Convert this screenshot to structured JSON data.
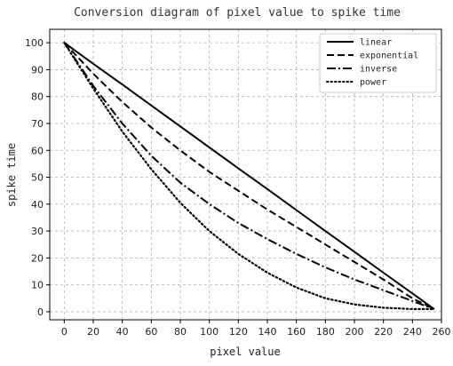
{
  "chart_data": {
    "type": "line",
    "title": "Conversion diagram of pixel value to spike time",
    "xlabel": "pixel value",
    "ylabel": "spike time",
    "xlim": [
      -10,
      260
    ],
    "ylim": [
      -3,
      105
    ],
    "xticks": [
      0,
      20,
      40,
      60,
      80,
      100,
      120,
      140,
      160,
      180,
      200,
      220,
      240,
      260
    ],
    "yticks": [
      0,
      10,
      20,
      30,
      40,
      50,
      60,
      70,
      80,
      90,
      100
    ],
    "grid": true,
    "legend_position": "top-right",
    "series": [
      {
        "name": "linear",
        "style": "solid",
        "x": [
          0,
          20,
          40,
          60,
          80,
          100,
          120,
          140,
          160,
          180,
          200,
          220,
          240,
          255
        ],
        "y": [
          100,
          92.2,
          84.5,
          76.7,
          68.9,
          61.1,
          53.3,
          45.6,
          37.8,
          30.0,
          22.3,
          14.5,
          6.8,
          1
        ]
      },
      {
        "name": "exponential",
        "style": "dashed",
        "x": [
          0,
          20,
          40,
          60,
          80,
          100,
          120,
          140,
          160,
          180,
          200,
          220,
          240,
          255
        ],
        "y": [
          100,
          88.5,
          78,
          68.5,
          60,
          52,
          45,
          38,
          31.5,
          25,
          18.5,
          12,
          5,
          1
        ]
      },
      {
        "name": "inverse",
        "style": "dashdot",
        "x": [
          0,
          20,
          40,
          60,
          80,
          100,
          120,
          140,
          160,
          180,
          200,
          220,
          240,
          255
        ],
        "y": [
          100,
          84,
          70,
          58,
          48,
          40,
          33,
          27,
          21.5,
          16.5,
          12,
          8,
          4,
          1
        ]
      },
      {
        "name": "power",
        "style": "dotted",
        "x": [
          0,
          20,
          40,
          60,
          80,
          100,
          120,
          140,
          160,
          180,
          200,
          220,
          240,
          255
        ],
        "y": [
          100,
          83,
          67,
          53,
          40.5,
          30,
          21.5,
          14.5,
          9,
          5,
          2.7,
          1.5,
          1,
          1
        ]
      }
    ]
  }
}
